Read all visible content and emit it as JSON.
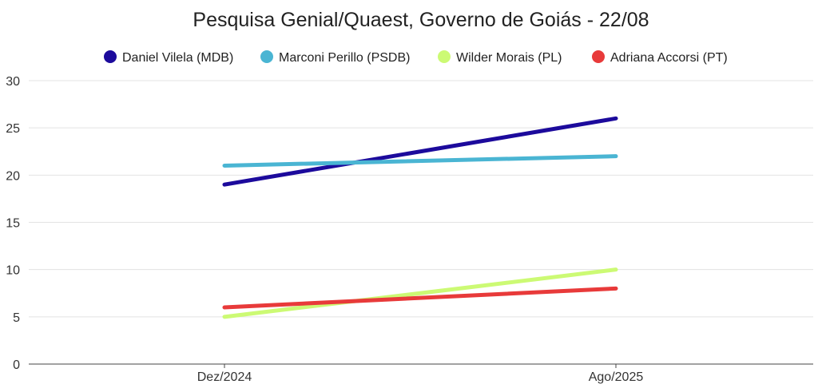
{
  "chart_data": {
    "type": "line",
    "title": "Pesquisa Genial/Quaest, Governo de Goiás - 22/08",
    "categories": [
      "Dez/2024",
      "Ago/2025"
    ],
    "series": [
      {
        "name": "Daniel Vilela (MDB)",
        "values": [
          19,
          26
        ],
        "color": "#1c0a9c"
      },
      {
        "name": "Marconi Perillo (PSDB)",
        "values": [
          21,
          22
        ],
        "color": "#4ab5d3"
      },
      {
        "name": "Wilder Morais (PL)",
        "values": [
          5,
          10
        ],
        "color": "#ccfa74"
      },
      {
        "name": "Adriana Accorsi (PT)",
        "values": [
          6,
          8
        ],
        "color": "#e83a3a"
      }
    ],
    "xlabel": "",
    "ylabel": "",
    "ylim": [
      0,
      30
    ],
    "yticks": [
      0,
      5,
      10,
      15,
      20,
      25,
      30
    ],
    "grid": true,
    "legend_position": "top"
  }
}
